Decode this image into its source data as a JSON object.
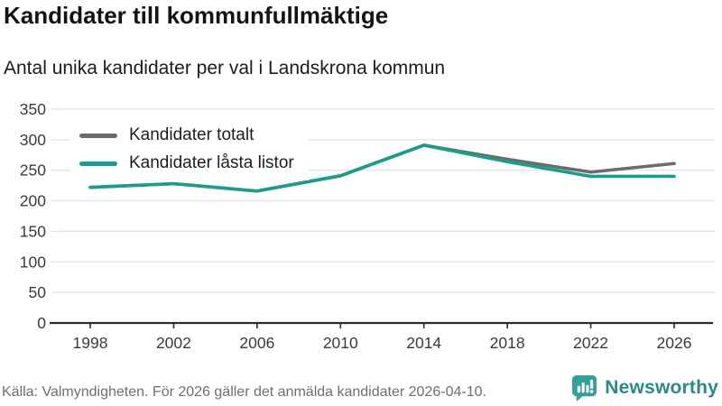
{
  "header": {
    "title": "Kandidater till kommunfullmäktige",
    "subtitle": "Antal unika kandidater per val i Landskrona kommun"
  },
  "chart_data": {
    "type": "line",
    "x": [
      1998,
      2002,
      2006,
      2010,
      2014,
      2018,
      2022,
      2026
    ],
    "series": [
      {
        "name": "Kandidater totalt",
        "color": "#6b6b6e",
        "values": [
          222,
          228,
          216,
          241,
          291,
          268,
          247,
          261
        ]
      },
      {
        "name": "Kandidater låsta listor",
        "color": "#1a9d8f",
        "values": [
          222,
          228,
          216,
          241,
          291,
          264,
          240,
          240
        ]
      }
    ],
    "title": "Kandidater till kommunfullmäktige",
    "subtitle": "Antal unika kandidater per val i Landskrona kommun",
    "xlabel": "",
    "ylabel": "",
    "ylim": [
      0,
      350
    ],
    "ytick_step": 50,
    "grid": true,
    "legend_position": "top-left",
    "grid_color": "#e3e3e3",
    "axis_color": "#2d2d2d",
    "tick_label_color": "#3a3a3a"
  },
  "footer": {
    "source": "Källa: Valmyndigheten. För 2026 gäller det anmälda kandidater 2026-04-10."
  },
  "logo": {
    "text": "Newsworthy",
    "icon": "newsworthy-speech-bubble-barchart-icon",
    "icon_color": "#35a095",
    "text_color": "#2b8a85"
  }
}
